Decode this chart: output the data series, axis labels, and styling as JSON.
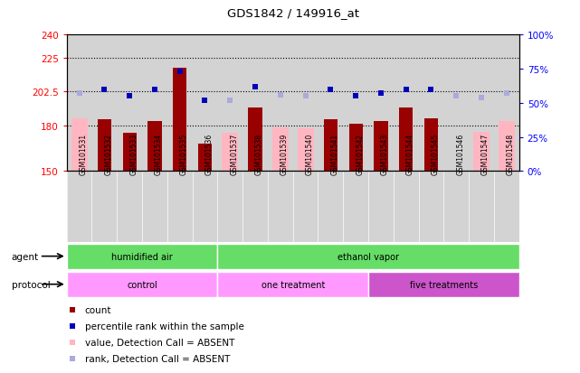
{
  "title": "GDS1842 / 149916_at",
  "samples": [
    "GSM101531",
    "GSM101532",
    "GSM101533",
    "GSM101534",
    "GSM101535",
    "GSM101536",
    "GSM101537",
    "GSM101538",
    "GSM101539",
    "GSM101540",
    "GSM101541",
    "GSM101542",
    "GSM101543",
    "GSM101544",
    "GSM101545",
    "GSM101546",
    "GSM101547",
    "GSM101548"
  ],
  "count_values": [
    150,
    184,
    175,
    183,
    218,
    168,
    150,
    192,
    150,
    150,
    184,
    181,
    183,
    192,
    185,
    150,
    150,
    150
  ],
  "count_absent": [
    true,
    false,
    false,
    false,
    false,
    false,
    true,
    false,
    true,
    true,
    false,
    false,
    false,
    false,
    false,
    true,
    true,
    true
  ],
  "value_absent_vals": [
    185,
    150,
    150,
    150,
    150,
    150,
    175,
    150,
    179,
    178,
    150,
    150,
    150,
    150,
    183,
    150,
    176,
    183
  ],
  "rank_vals": [
    57,
    60,
    55,
    60,
    73,
    52,
    52,
    62,
    56,
    55,
    60,
    55,
    57,
    60,
    60,
    55,
    54,
    57
  ],
  "rank_absent": [
    true,
    false,
    false,
    false,
    false,
    false,
    true,
    false,
    true,
    true,
    false,
    false,
    false,
    false,
    false,
    true,
    true,
    true
  ],
  "ylim_left": [
    150,
    240
  ],
  "ylim_right": [
    0,
    100
  ],
  "hlines": [
    180.0,
    202.5,
    225.0
  ],
  "left_yticks": [
    150,
    180,
    202.5,
    225,
    240
  ],
  "right_yticks": [
    0,
    25,
    50,
    75,
    100
  ],
  "agent_groups": [
    {
      "label": "humidified air",
      "start": 0,
      "end": 5,
      "color": "#66DD66"
    },
    {
      "label": "ethanol vapor",
      "start": 6,
      "end": 17,
      "color": "#66DD66"
    }
  ],
  "protocol_groups": [
    {
      "label": "control",
      "start": 0,
      "end": 5,
      "color": "#FF99FF"
    },
    {
      "label": "one treatment",
      "start": 6,
      "end": 11,
      "color": "#FF99FF"
    },
    {
      "label": "five treatments",
      "start": 12,
      "end": 17,
      "color": "#CC55CC"
    }
  ],
  "color_count": "#990000",
  "color_count_absent": "#FFB6C1",
  "color_rank": "#0000BB",
  "color_rank_absent": "#AAAADD",
  "bg_color": "#D3D3D3",
  "label_font": 7.5,
  "tick_font": 6.5
}
